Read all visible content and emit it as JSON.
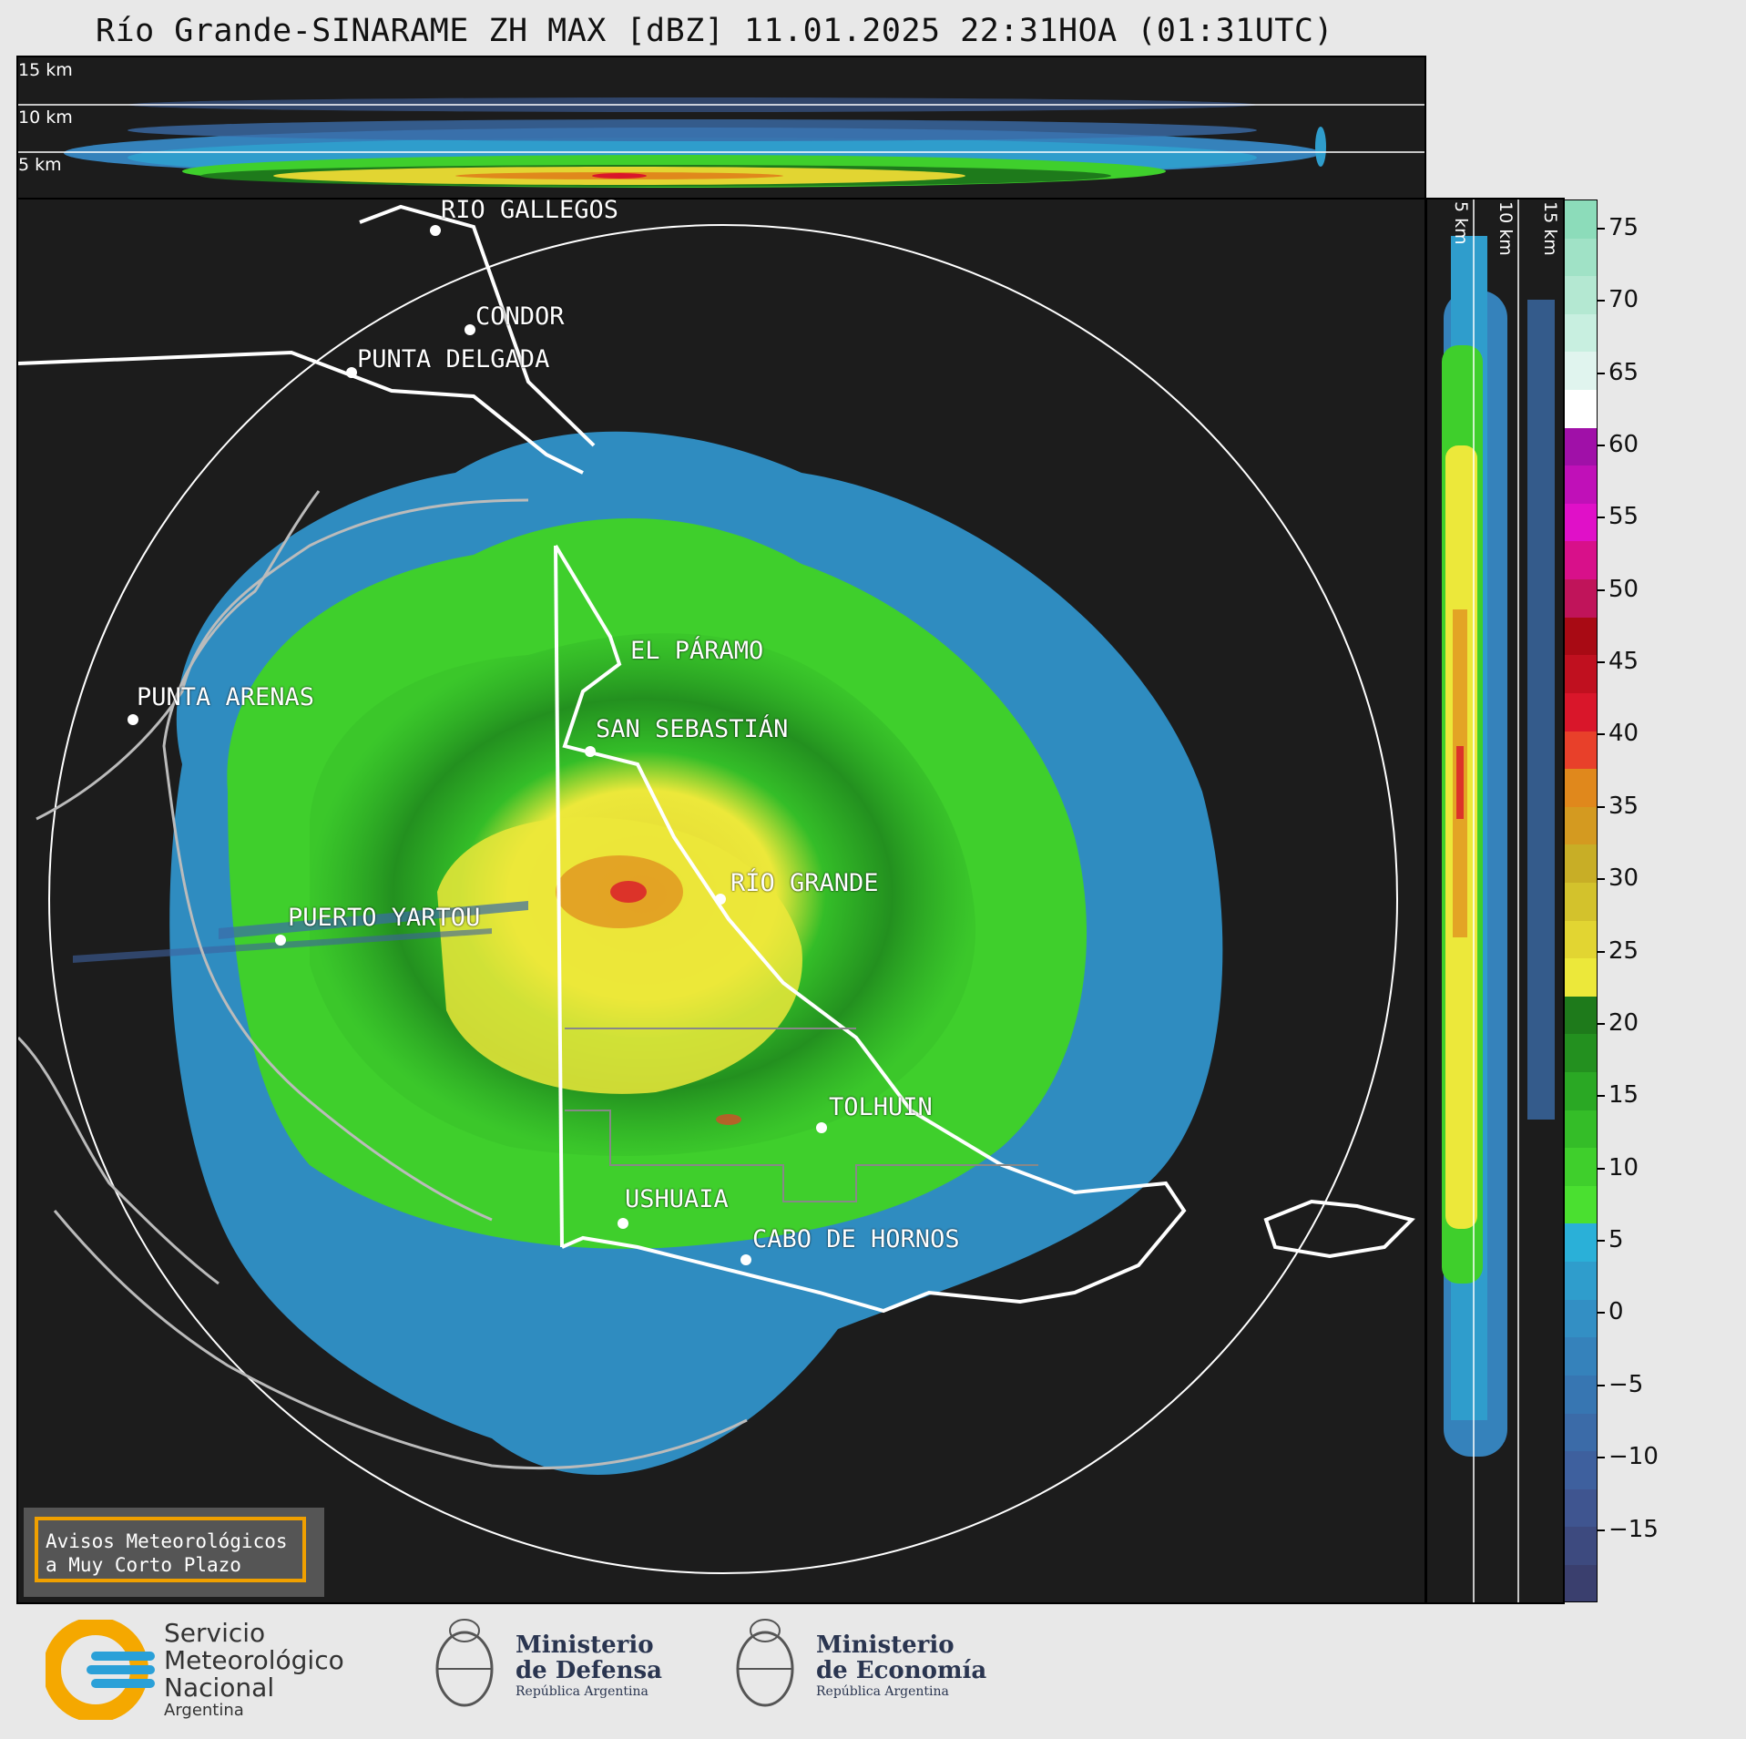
{
  "title": "Río Grande-SINARAME ZH MAX [dBZ] 11.01.2025 22:31HOA (01:31UTC)",
  "top_panel": {
    "height_labels": [
      "15 km",
      "10 km",
      "5 km"
    ]
  },
  "side_panel": {
    "height_labels": [
      "5 km",
      "10 km",
      "15 km"
    ]
  },
  "cities": [
    {
      "name": "RÍO GALLEGOS"
    },
    {
      "name": "CONDOR"
    },
    {
      "name": "PUNTA DELGADA"
    },
    {
      "name": "EL PÁRAMO"
    },
    {
      "name": "PUNTA ARENAS"
    },
    {
      "name": "SAN SEBASTIÁN"
    },
    {
      "name": "RÍO GRANDE"
    },
    {
      "name": "PUERTO YARTOU"
    },
    {
      "name": "TOLHUIN"
    },
    {
      "name": "USHUAIA"
    },
    {
      "name": "CABO DE HORNOS"
    }
  ],
  "notice": {
    "line1": "Avisos Meteorológicos",
    "line2": "a Muy Corto Plazo"
  },
  "colorbar": {
    "unit": "dBZ",
    "range": [
      -20,
      77
    ],
    "ticks": [
      "75",
      "70",
      "65",
      "60",
      "55",
      "50",
      "45",
      "40",
      "35",
      "30",
      "25",
      "20",
      "15",
      "10",
      "5",
      "0",
      "−5",
      "−10",
      "−15"
    ],
    "colors": [
      "#3a3f6e",
      "#3d4a7f",
      "#3f5590",
      "#3e609e",
      "#3b6ba8",
      "#3776b2",
      "#3582bb",
      "#338fc4",
      "#2f9dcc",
      "#2ab0d8",
      "#4ae030",
      "#3fcf2c",
      "#34bd28",
      "#2aa824",
      "#23901f",
      "#1e7a1b",
      "#ece83a",
      "#e2d532",
      "#d3c22c",
      "#c8ae26",
      "#d49a20",
      "#e0881c",
      "#e8402a",
      "#d9162a",
      "#c0101f",
      "#a80a14",
      "#c0145a",
      "#d8108a",
      "#e010c8",
      "#c010b8",
      "#a010a8",
      "#ffffff",
      "#e0f4ee",
      "#c8efe0",
      "#b4e8d2",
      "#a0e2c6",
      "#8cdcba"
    ]
  },
  "logos": {
    "smn_line1": "Servicio",
    "smn_line2": "Meteorológico",
    "smn_line3": "Nacional",
    "smn_line4": "Argentina",
    "defensa_line1": "Ministerio",
    "defensa_line2": "de Defensa",
    "defensa_line3": "República Argentina",
    "economia_line1": "Ministerio",
    "economia_line2": "de Economía",
    "economia_line3": "República Argentina"
  }
}
